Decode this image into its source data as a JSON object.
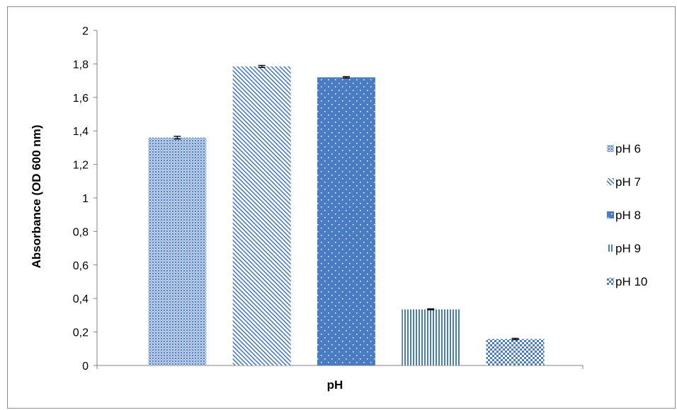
{
  "chart_data": {
    "type": "bar",
    "categories": [
      "pH 6",
      "pH 7",
      "pH 8",
      "pH 9",
      "pH 10"
    ],
    "series": [
      {
        "name": "pH 6",
        "value": 1.36,
        "error": 0.008,
        "pattern": "fine-grid"
      },
      {
        "name": "pH 7",
        "value": 1.785,
        "error": 0.006,
        "pattern": "diagonal"
      },
      {
        "name": "pH 8",
        "value": 1.72,
        "error": 0.004,
        "pattern": "dots"
      },
      {
        "name": "pH 9",
        "value": 0.335,
        "error": 0.003,
        "pattern": "vertical"
      },
      {
        "name": "pH 10",
        "value": 0.158,
        "error": 0.004,
        "pattern": "checker"
      }
    ],
    "xlabel": "pH",
    "ylabel": "Absorbance (OD 600 nm)",
    "ylim": [
      0,
      2
    ],
    "yticks": [
      "0",
      "0,2",
      "0,4",
      "0,6",
      "0,8",
      "1",
      "1,2",
      "1,4",
      "1,6",
      "1,8",
      "2"
    ],
    "grid": false,
    "legend_position": "right",
    "colors": {
      "bar": "#4a7cc3",
      "bar_light": "#ffffff",
      "axis": "#808080",
      "error": "#000000"
    }
  }
}
